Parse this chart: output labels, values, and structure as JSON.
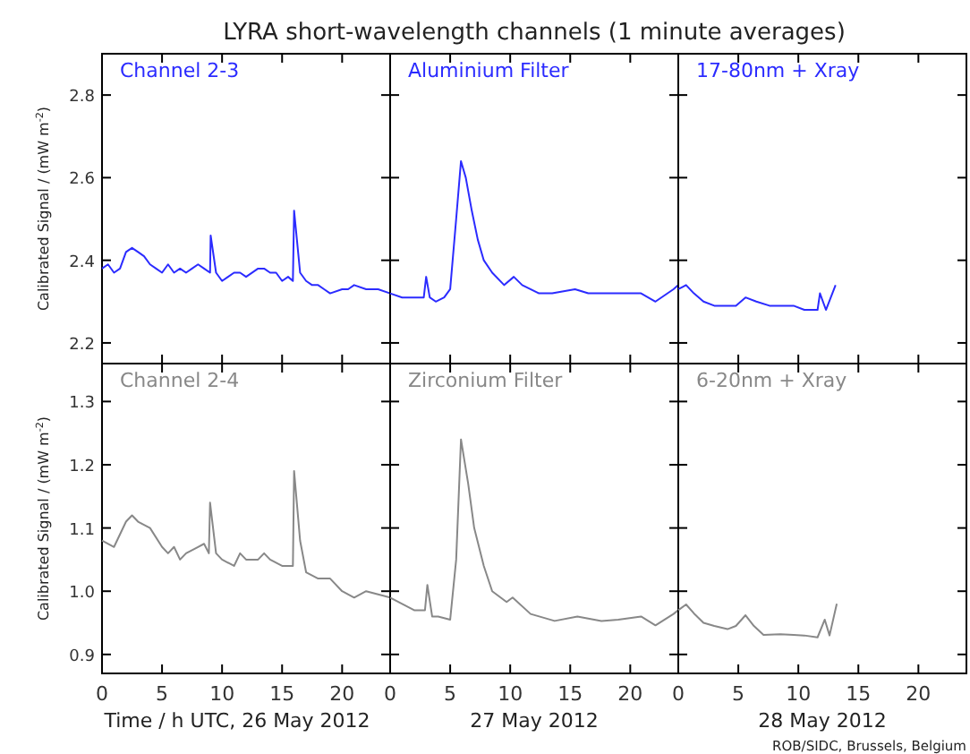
{
  "chart_data": [
    {
      "type": "line",
      "title": "LYRA short-wavelength channels (1 minute averages)",
      "ylabel": "Calibrated Signal / (mW m$^{-2}$)",
      "xlim": [
        0,
        24
      ],
      "xticks": [
        0,
        5,
        10,
        15,
        20
      ],
      "ylim": [
        2.15,
        2.9
      ],
      "yticks": [
        2.2,
        2.4,
        2.6,
        2.8
      ],
      "tick_labels": "y",
      "marker": "none",
      "line_style": "solid",
      "series": [
        {
          "name": "Channel 2-3",
          "color": "#2b2bff",
          "x": [
            0,
            0.5,
            1,
            1.5,
            2,
            2.5,
            3,
            3.5,
            4,
            4.5,
            5,
            5.5,
            6,
            6.5,
            7,
            7.5,
            8,
            8.5,
            9,
            9.05,
            9.5,
            10,
            10.5,
            11,
            11.5,
            12,
            13,
            13.5,
            14,
            14.5,
            15,
            15.5,
            15.9,
            16.0,
            16.5,
            17,
            17.5,
            18,
            18.5,
            19,
            20,
            20.5,
            21,
            22,
            23,
            24
          ],
          "values": [
            2.38,
            2.39,
            2.37,
            2.38,
            2.42,
            2.43,
            2.42,
            2.41,
            2.39,
            2.38,
            2.37,
            2.39,
            2.37,
            2.38,
            2.37,
            2.38,
            2.39,
            2.38,
            2.37,
            2.46,
            2.37,
            2.35,
            2.36,
            2.37,
            2.37,
            2.36,
            2.38,
            2.38,
            2.37,
            2.37,
            2.35,
            2.36,
            2.35,
            2.52,
            2.37,
            2.35,
            2.34,
            2.34,
            2.33,
            2.32,
            2.33,
            2.33,
            2.34,
            2.33,
            2.33,
            2.32
          ]
        }
      ]
    },
    {
      "type": "line",
      "xlim": [
        0,
        24
      ],
      "xticks": [
        0,
        5,
        10,
        15,
        20
      ],
      "ylim": [
        2.15,
        2.9
      ],
      "yticks": [
        2.2,
        2.4,
        2.6,
        2.8
      ],
      "tick_labels": false,
      "marker": "none",
      "line_style": "solid",
      "series": [
        {
          "name": "Aluminium Filter",
          "color": "#2b2bff",
          "x": [
            0,
            1,
            2,
            2.8,
            3.0,
            3.3,
            3.8,
            4.5,
            5,
            5.5,
            5.9,
            6.3,
            6.8,
            7.3,
            7.8,
            8.5,
            9.5,
            10.3,
            11,
            12.4,
            13.5,
            15.4,
            16.5,
            17.7,
            19,
            20.9,
            22.1,
            23.6,
            24
          ],
          "values": [
            2.32,
            2.31,
            2.31,
            2.31,
            2.36,
            2.31,
            2.3,
            2.31,
            2.33,
            2.5,
            2.64,
            2.6,
            2.52,
            2.45,
            2.4,
            2.37,
            2.34,
            2.36,
            2.34,
            2.32,
            2.32,
            2.33,
            2.32,
            2.32,
            2.32,
            2.32,
            2.3,
            2.33,
            2.34
          ]
        }
      ]
    },
    {
      "type": "line",
      "xlim": [
        0,
        24
      ],
      "xticks": [
        0,
        5,
        10,
        15,
        20
      ],
      "ylim": [
        2.15,
        2.9
      ],
      "yticks": [
        2.2,
        2.4,
        2.6,
        2.8
      ],
      "tick_labels": false,
      "marker": "none",
      "line_style": "solid",
      "series": [
        {
          "name": "17-80nm + Xray",
          "color": "#2b2bff",
          "x": [
            0,
            0.65,
            1.3,
            2.1,
            3,
            4.1,
            4.8,
            5.6,
            6.5,
            7.6,
            8.5,
            9.6,
            10.5,
            11.6,
            11.8,
            12.3,
            13.1
          ],
          "values": [
            2.33,
            2.34,
            2.32,
            2.3,
            2.29,
            2.29,
            2.29,
            2.31,
            2.3,
            2.29,
            2.29,
            2.29,
            2.28,
            2.28,
            2.32,
            2.28,
            2.34
          ]
        }
      ]
    },
    {
      "type": "line",
      "xlabel": "Time / h UTC, 26 May 2012",
      "ylabel": "Calibrated Signal / (mW m$^{-2}$)",
      "xlim": [
        0,
        24
      ],
      "xticks": [
        0,
        5,
        10,
        15,
        20
      ],
      "ylim": [
        0.87,
        1.36
      ],
      "yticks": [
        0.9,
        {
          "value": 1,
          "label": "1.0"
        },
        1.1,
        1.2,
        1.3
      ],
      "marker": "none",
      "line_style": "solid",
      "series": [
        {
          "name": "Channel 2-4",
          "color": "#888888",
          "x": [
            0,
            1,
            2,
            2.5,
            3,
            4,
            5,
            5.5,
            6,
            6.5,
            7,
            8,
            8.5,
            8.9,
            9.0,
            9.5,
            10,
            11,
            11.5,
            12,
            13,
            13.5,
            14,
            15,
            15.5,
            15.9,
            16.0,
            16.5,
            17,
            18,
            19,
            20,
            21,
            22,
            23,
            24
          ],
          "values": [
            1.08,
            1.07,
            1.11,
            1.12,
            1.11,
            1.1,
            1.07,
            1.06,
            1.07,
            1.05,
            1.06,
            1.07,
            1.075,
            1.06,
            1.14,
            1.06,
            1.05,
            1.04,
            1.06,
            1.05,
            1.05,
            1.06,
            1.05,
            1.04,
            1.04,
            1.04,
            1.19,
            1.08,
            1.03,
            1.02,
            1.02,
            1.0,
            0.99,
            1.0,
            0.995,
            0.99
          ]
        }
      ]
    },
    {
      "type": "line",
      "xlabel": "27 May 2012",
      "xlim": [
        0,
        24
      ],
      "xticks": [
        0,
        5,
        10,
        15,
        20
      ],
      "ylim": [
        0.87,
        1.36
      ],
      "yticks": [
        0.9,
        1,
        1.1,
        1.2,
        1.3
      ],
      "tick_labels": "x",
      "marker": "none",
      "line_style": "solid",
      "series": [
        {
          "name": "Zirconium Filter",
          "color": "#888888",
          "x": [
            0,
            1,
            2,
            2.9,
            3.1,
            3.5,
            4,
            5,
            5.5,
            5.9,
            6.5,
            7,
            7.8,
            8.5,
            9.7,
            10.2,
            11.7,
            13.7,
            15.6,
            17.6,
            19,
            20.9,
            22.1,
            23.6,
            24
          ],
          "values": [
            0.99,
            0.98,
            0.97,
            0.97,
            1.01,
            0.96,
            0.96,
            0.955,
            1.05,
            1.24,
            1.17,
            1.1,
            1.04,
            1.0,
            0.983,
            0.99,
            0.964,
            0.953,
            0.96,
            0.953,
            0.955,
            0.96,
            0.946,
            0.964,
            0.97
          ]
        }
      ]
    },
    {
      "type": "line",
      "xlabel": "28 May 2012",
      "xlim": [
        0,
        24
      ],
      "xticks": [
        0,
        5,
        10,
        15,
        20
      ],
      "ylim": [
        0.87,
        1.36
      ],
      "yticks": [
        0.9,
        1,
        1.1,
        1.2,
        1.3
      ],
      "tick_labels": "x",
      "marker": "none",
      "line_style": "solid",
      "annotations": [
        "ROB/SIDC, Brussels, Belgium"
      ],
      "series": [
        {
          "name": "6-20nm + Xray",
          "color": "#888888",
          "x": [
            0,
            0.65,
            1.3,
            2.1,
            3,
            4.1,
            4.8,
            5.6,
            6.3,
            7.1,
            8.5,
            9.6,
            10.5,
            11.6,
            12.2,
            12.6,
            13.2
          ],
          "values": [
            0.97,
            0.979,
            0.965,
            0.95,
            0.945,
            0.94,
            0.945,
            0.962,
            0.945,
            0.931,
            0.932,
            0.931,
            0.93,
            0.927,
            0.955,
            0.93,
            0.98
          ]
        }
      ]
    }
  ]
}
